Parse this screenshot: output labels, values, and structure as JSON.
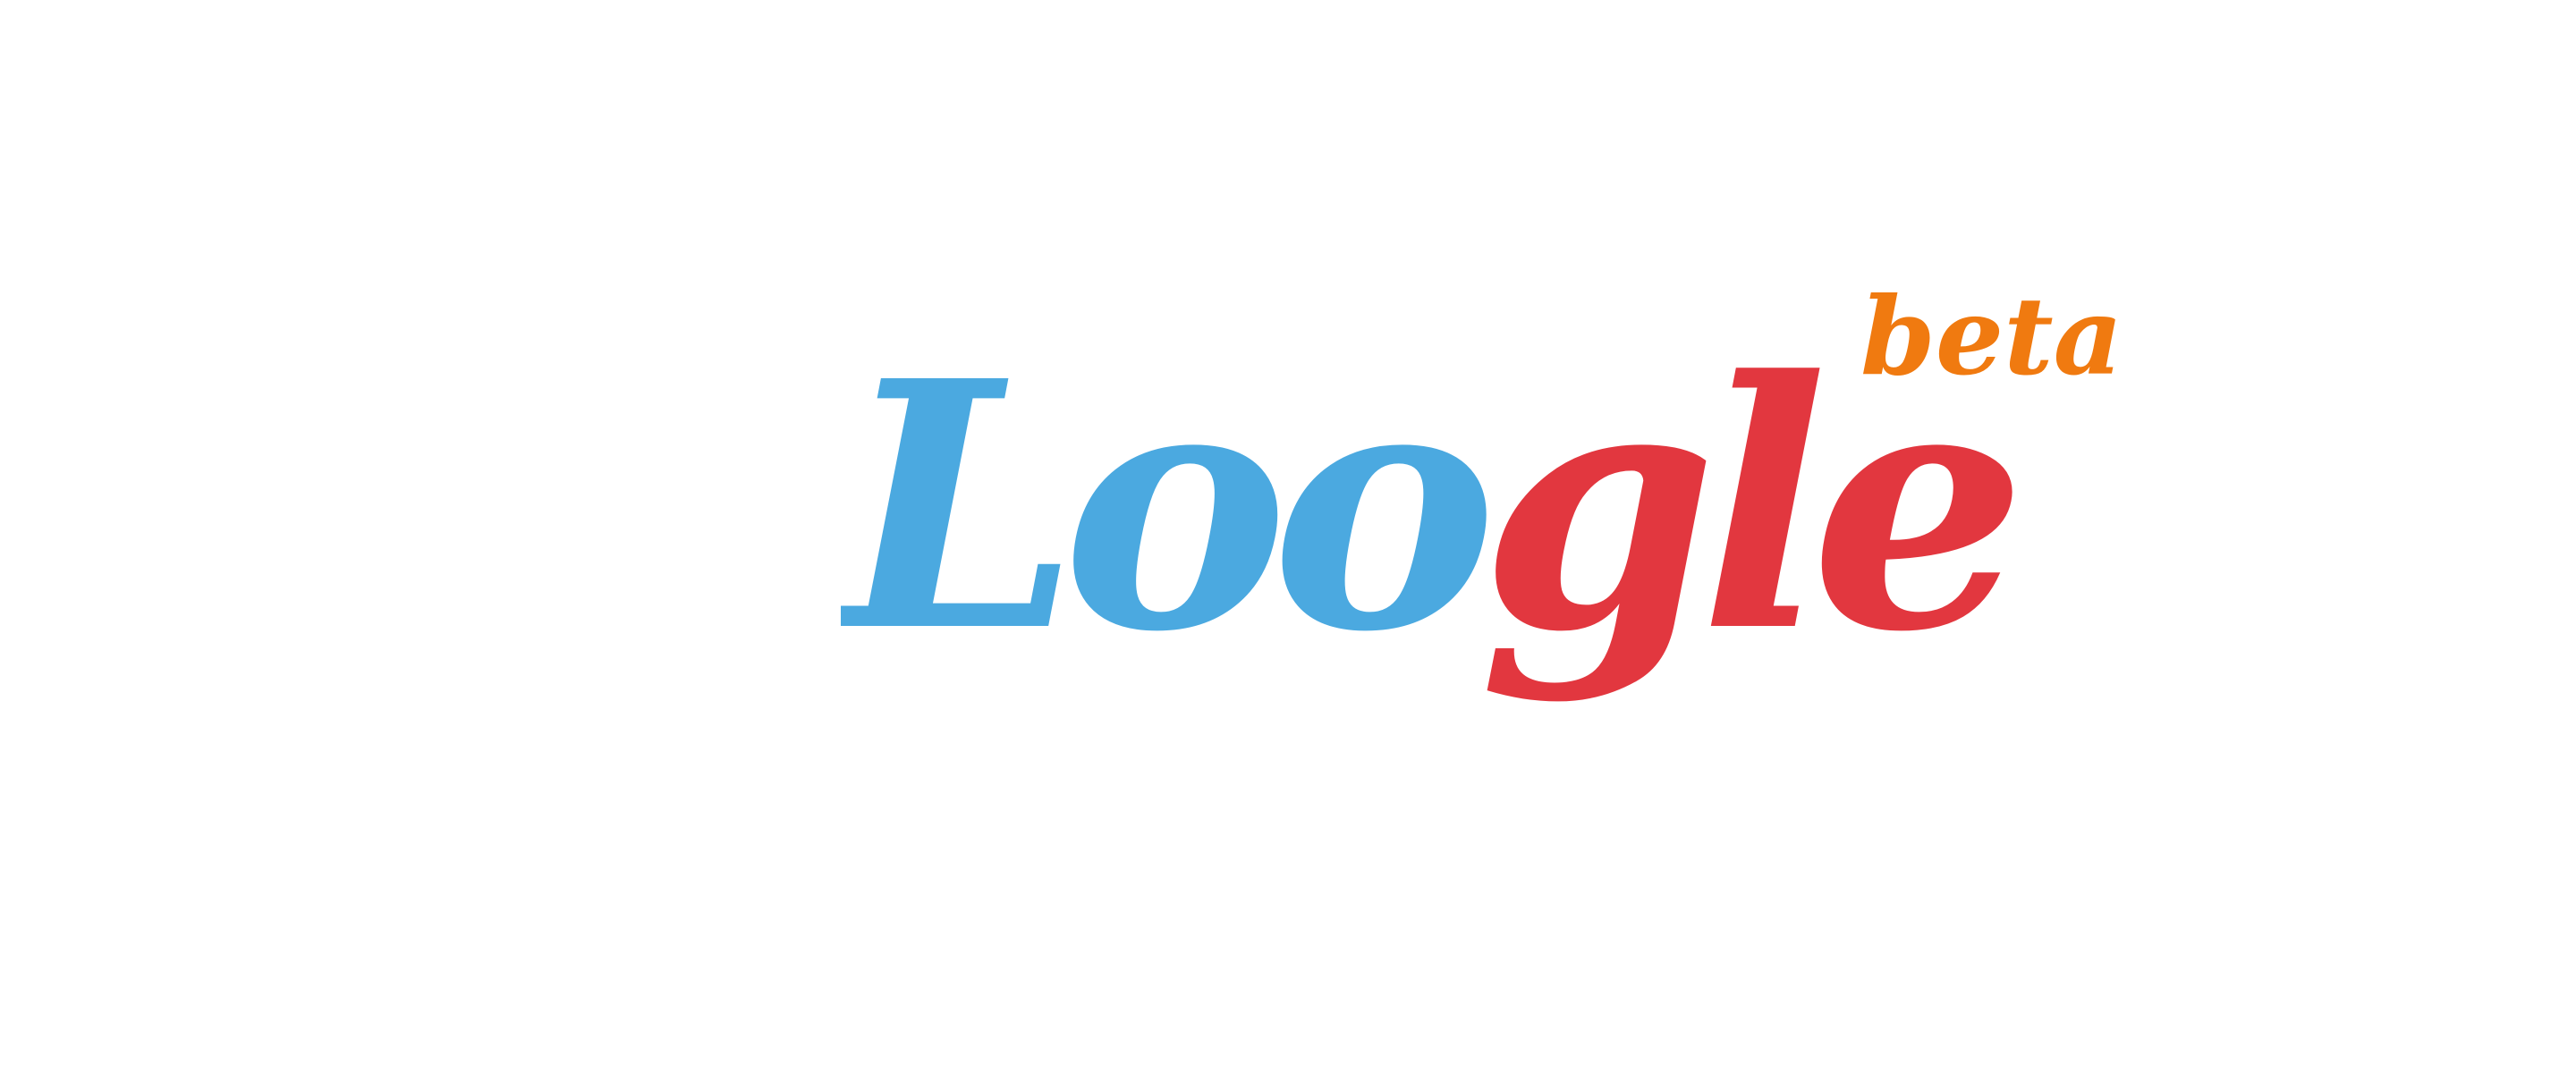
{
  "logo": {
    "wordmark": "Loogle",
    "letters": [
      {
        "char": "L",
        "color": "#4BA9E0"
      },
      {
        "char": "o",
        "color": "#4BA9E0"
      },
      {
        "char": "o",
        "color": "#4BA9E0"
      },
      {
        "char": "g",
        "color": "#E2373F"
      },
      {
        "char": "l",
        "color": "#E2373F"
      },
      {
        "char": "e",
        "color": "#E2373F"
      }
    ],
    "badge": "beta",
    "colors": {
      "blue": "#4BA9E0",
      "red": "#E2373F",
      "orange": "#F07A10",
      "background": "#FFFFFF"
    }
  }
}
